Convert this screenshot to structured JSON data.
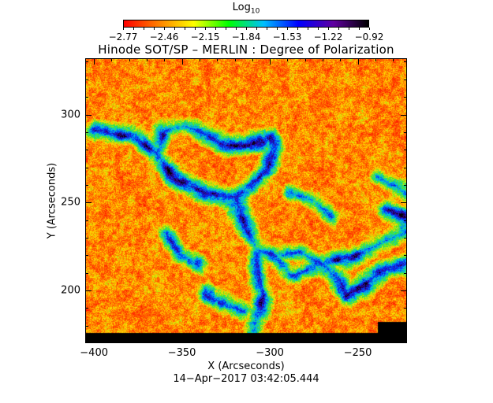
{
  "colorbar": {
    "title_main": "Log",
    "title_sub": "10",
    "tick_labels": [
      "−2.77",
      "−2.46",
      "−2.15",
      "−1.84",
      "−1.53",
      "−1.22",
      "−0.92"
    ],
    "range": [
      -2.77,
      -0.92
    ],
    "colormap": [
      "#ff0000",
      "#ff8000",
      "#ffff00",
      "#00ff00",
      "#00c0ff",
      "#0000ff",
      "#6000a0",
      "#000000"
    ]
  },
  "plot": {
    "title": "Hinode SOT/SP – MERLIN : Degree of Polarization",
    "xlabel": "X (Arcseconds)",
    "ylabel": "Y (Arcseconds)",
    "x_ticks": [
      "−400",
      "−350",
      "−300",
      "−250"
    ],
    "y_ticks": [
      "300",
      "250",
      "200"
    ],
    "xlim": [
      -405,
      -222
    ],
    "ylim": [
      170,
      332
    ],
    "background_color": "#f04010",
    "timestamp": "14−Apr−2017 03:42:05.444"
  }
}
